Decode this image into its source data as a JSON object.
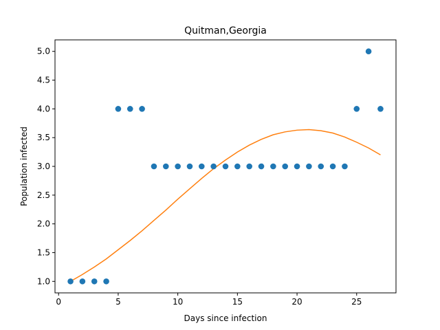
{
  "chart_data": {
    "type": "scatter",
    "title": "Quitman,Georgia",
    "xlabel": "Days since infection",
    "ylabel": "Population infected",
    "xlim": [
      -0.3,
      28.3
    ],
    "ylim": [
      0.8,
      5.2
    ],
    "xticks": [
      0,
      5,
      10,
      15,
      20,
      25
    ],
    "xtick_labels": [
      "0",
      "5",
      "10",
      "15",
      "20",
      "25"
    ],
    "yticks": [
      1.0,
      1.5,
      2.0,
      2.5,
      3.0,
      3.5,
      4.0,
      4.5,
      5.0
    ],
    "ytick_labels": [
      "1.0",
      "1.5",
      "2.0",
      "2.5",
      "3.0",
      "3.5",
      "4.0",
      "4.5",
      "5.0"
    ],
    "grid": false,
    "series": [
      {
        "kind": "scatter",
        "color": "#1f77b4",
        "x": [
          1,
          2,
          3,
          4,
          5,
          6,
          7,
          8,
          9,
          10,
          11,
          12,
          13,
          14,
          15,
          16,
          17,
          18,
          19,
          20,
          21,
          22,
          23,
          24,
          25,
          26,
          27
        ],
        "y": [
          1,
          1,
          1,
          1,
          4,
          4,
          4,
          3,
          3,
          3,
          3,
          3,
          3,
          3,
          3,
          3,
          3,
          3,
          3,
          3,
          3,
          3,
          3,
          3,
          4,
          5,
          4
        ]
      },
      {
        "kind": "line",
        "color": "#ff7f0e",
        "x": [
          1,
          2,
          3,
          4,
          5,
          6,
          7,
          8,
          9,
          10,
          11,
          12,
          13,
          14,
          15,
          16,
          17,
          18,
          19,
          20,
          21,
          22,
          23,
          24,
          25,
          26,
          27
        ],
        "y": [
          1.0,
          1.12,
          1.25,
          1.39,
          1.55,
          1.71,
          1.88,
          2.06,
          2.24,
          2.43,
          2.61,
          2.79,
          2.96,
          3.11,
          3.25,
          3.37,
          3.47,
          3.55,
          3.6,
          3.63,
          3.64,
          3.62,
          3.58,
          3.51,
          3.42,
          3.32,
          3.2
        ]
      }
    ]
  }
}
